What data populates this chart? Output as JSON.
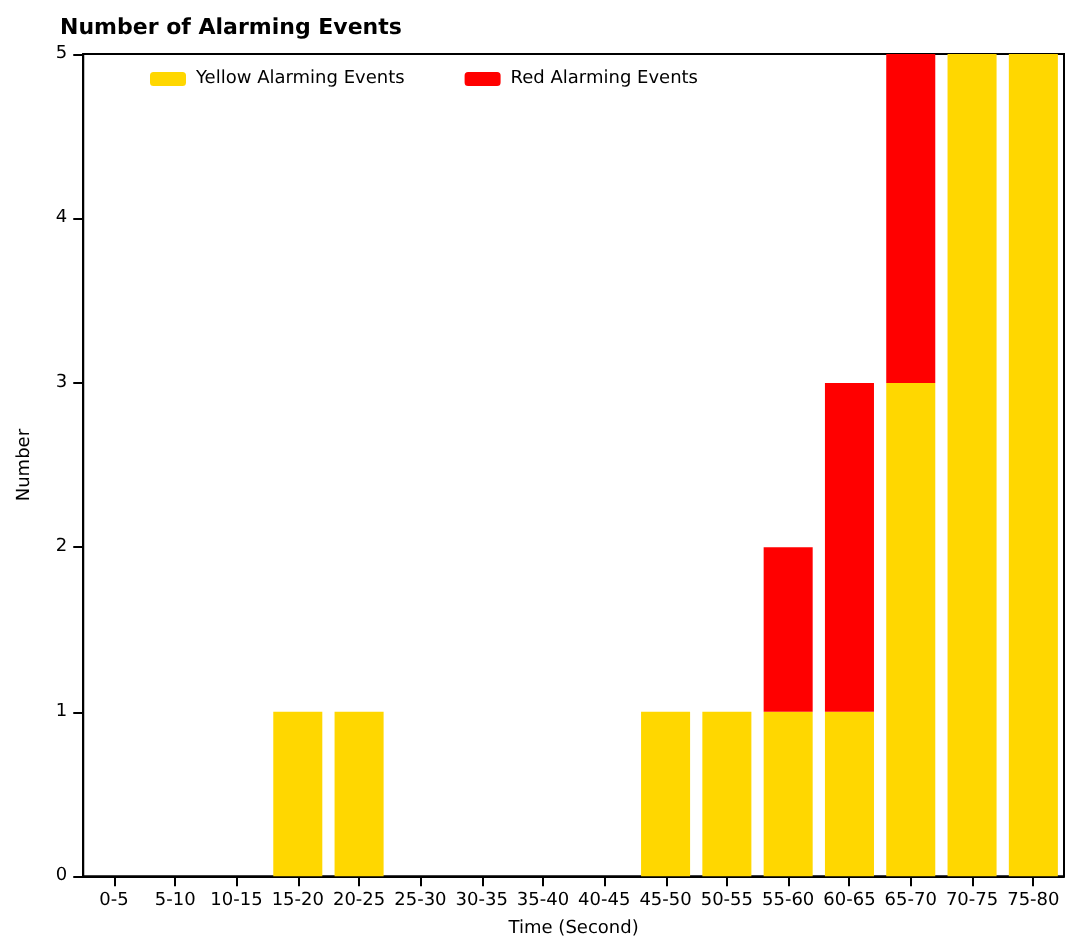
{
  "chart_data": {
    "type": "bar",
    "title": "Number of Alarming Events",
    "xlabel": "Time (Second)",
    "ylabel": "Number",
    "categories": [
      "0-5",
      "5-10",
      "10-15",
      "15-20",
      "20-25",
      "25-30",
      "30-35",
      "35-40",
      "40-45",
      "45-50",
      "50-55",
      "55-60",
      "60-65",
      "65-70",
      "70-75",
      "75-80"
    ],
    "series": [
      {
        "name": "Yellow Alarming Events",
        "color": "#ffd700",
        "values": [
          0,
          0,
          0,
          1,
          1,
          0,
          0,
          0,
          0,
          1,
          1,
          1,
          1,
          3,
          5,
          5
        ]
      },
      {
        "name": "Red Alarming Events",
        "color": "#ff0000",
        "values": [
          0,
          0,
          0,
          0,
          0,
          0,
          0,
          0,
          0,
          0,
          0,
          1,
          2,
          2,
          0,
          0
        ]
      }
    ],
    "stacked": true,
    "ylim": [
      0,
      5
    ],
    "yticks": [
      0,
      1,
      2,
      3,
      4,
      5
    ],
    "legend": "top left"
  }
}
